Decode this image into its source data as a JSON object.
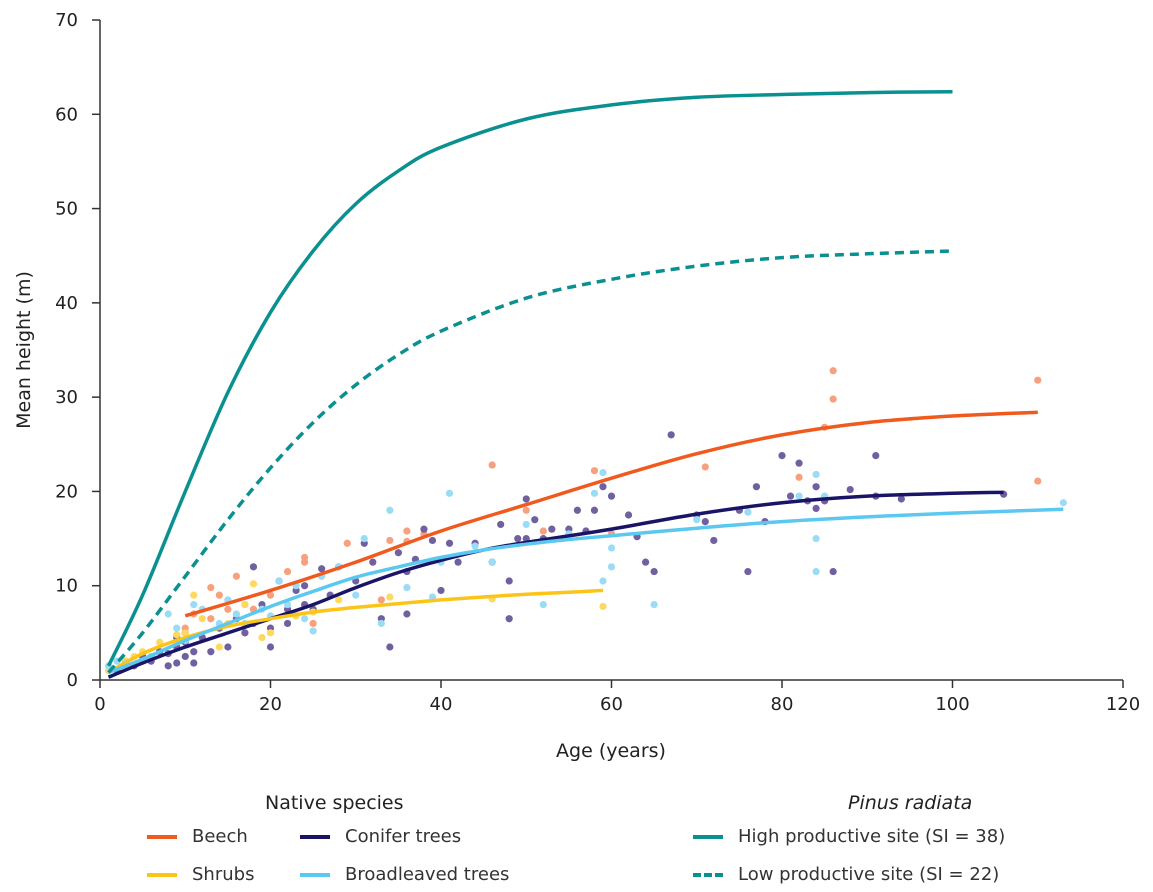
{
  "chart_data": {
    "type": "scatter",
    "xlabel": "Age (years)",
    "ylabel": "Mean height (m)",
    "xlim": [
      0,
      120
    ],
    "ylim": [
      0,
      70
    ],
    "xticks": [
      0,
      20,
      40,
      60,
      80,
      100,
      120
    ],
    "yticks": [
      0,
      10,
      20,
      30,
      40,
      50,
      60,
      70
    ],
    "grid": false,
    "legend_groups": [
      {
        "heading": "Native species",
        "italic": false,
        "items": [
          "Beech",
          "Conifer trees",
          "Shrubs",
          "Broadleaved trees"
        ]
      },
      {
        "heading": "Pinus radiata",
        "italic": true,
        "items": [
          "High productive site (SI = 38)",
          "Low productive site (SI = 22)"
        ]
      }
    ],
    "series": [
      {
        "name": "Beech",
        "color": "#f05a1e",
        "style": "solid",
        "x": [
          10,
          20,
          30,
          40,
          50,
          60,
          70,
          80,
          90,
          100,
          110
        ],
        "y": [
          6.8,
          9.5,
          12.5,
          15.8,
          18.6,
          21.4,
          24.0,
          26.0,
          27.3,
          28.0,
          28.4
        ]
      },
      {
        "name": "Conifer trees",
        "color": "#1a1466",
        "style": "solid",
        "x": [
          1,
          5,
          10,
          15,
          20,
          25,
          30,
          35,
          40,
          45,
          50,
          60,
          70,
          80,
          90,
          100,
          106
        ],
        "y": [
          0.3,
          1.8,
          3.5,
          5.0,
          6.5,
          8.0,
          9.8,
          11.4,
          12.7,
          13.8,
          14.6,
          16.0,
          17.6,
          18.8,
          19.5,
          19.8,
          19.9
        ]
      },
      {
        "name": "Shrubs",
        "color": "#fdc418",
        "style": "solid",
        "x": [
          1,
          5,
          10,
          15,
          20,
          25,
          30,
          35,
          40,
          45,
          50,
          55,
          59
        ],
        "y": [
          0.8,
          2.8,
          4.5,
          5.7,
          6.5,
          7.2,
          7.7,
          8.1,
          8.5,
          8.8,
          9.1,
          9.3,
          9.5
        ]
      },
      {
        "name": "Broadleaved trees",
        "color": "#5bc8f0",
        "style": "solid",
        "x": [
          1,
          5,
          10,
          15,
          20,
          25,
          30,
          35,
          40,
          45,
          50,
          55,
          60,
          70,
          80,
          90,
          100,
          113
        ],
        "y": [
          0.8,
          2.2,
          4.2,
          6.0,
          7.8,
          9.4,
          10.9,
          12.0,
          13.0,
          13.8,
          14.4,
          14.9,
          15.3,
          16.1,
          16.8,
          17.3,
          17.7,
          18.1
        ]
      },
      {
        "name": "High productive site (SI = 38)",
        "color": "#0a9090",
        "style": "solid",
        "x": [
          1,
          5,
          10,
          15,
          20,
          25,
          30,
          35,
          40,
          50,
          60,
          70,
          80,
          90,
          100
        ],
        "y": [
          1.5,
          9.0,
          20.0,
          30.5,
          39.0,
          45.5,
          50.5,
          54.0,
          56.5,
          59.5,
          61.0,
          61.8,
          62.1,
          62.3,
          62.4
        ]
      },
      {
        "name": "Low productive site (SI = 22)",
        "color": "#0a9090",
        "style": "dashed",
        "x": [
          1,
          5,
          10,
          15,
          20,
          25,
          30,
          35,
          40,
          50,
          60,
          70,
          80,
          90,
          100
        ],
        "y": [
          0.8,
          5.0,
          11.0,
          17.0,
          22.5,
          27.3,
          31.3,
          34.5,
          37.0,
          40.5,
          42.5,
          43.9,
          44.8,
          45.2,
          45.5
        ]
      }
    ],
    "points": [
      {
        "name": "Beech",
        "color": "#f7a07e",
        "x": [
          10,
          11,
          13,
          13,
          14,
          15,
          16,
          17,
          18,
          20,
          22,
          24,
          24,
          25,
          29,
          33,
          34,
          36,
          36,
          38,
          46,
          50,
          52,
          58,
          60,
          71,
          82,
          85,
          86,
          86,
          110,
          110
        ],
        "y": [
          5.5,
          7.0,
          6.5,
          9.8,
          9.0,
          7.5,
          11.0,
          8.0,
          7.5,
          9.0,
          11.5,
          13.0,
          12.5,
          6.0,
          14.5,
          8.5,
          14.8,
          15.8,
          14.7,
          15.5,
          22.8,
          18.0,
          15.8,
          22.2,
          15.5,
          22.6,
          21.5,
          26.8,
          32.8,
          29.8,
          31.8,
          21.1
        ]
      },
      {
        "name": "Conifer trees",
        "color": "#7060a0",
        "x": [
          2,
          3,
          4,
          5,
          6,
          7,
          8,
          8,
          9,
          9,
          9,
          10,
          10,
          10,
          11,
          11,
          12,
          13,
          14,
          15,
          16,
          17,
          18,
          18,
          19,
          20,
          20,
          21,
          22,
          22,
          23,
          24,
          24,
          25,
          26,
          27,
          28,
          30,
          31,
          32,
          33,
          34,
          35,
          36,
          36,
          37,
          38,
          39,
          40,
          41,
          42,
          44,
          46,
          47,
          48,
          48,
          49,
          50,
          50,
          51,
          52,
          53,
          55,
          56,
          57,
          58,
          59,
          60,
          62,
          63,
          64,
          65,
          67,
          70,
          71,
          72,
          75,
          76,
          77,
          78,
          80,
          81,
          82,
          83,
          84,
          84,
          85,
          86,
          88,
          91,
          91,
          94,
          106
        ],
        "y": [
          1.0,
          2.0,
          1.5,
          2.5,
          2.0,
          3.0,
          1.5,
          2.8,
          1.8,
          3.5,
          4.5,
          2.5,
          4.0,
          5.0,
          1.8,
          3.0,
          4.5,
          3.0,
          5.5,
          3.5,
          6.5,
          5.0,
          6.0,
          12.0,
          8.0,
          3.5,
          5.5,
          10.5,
          7.5,
          6.0,
          9.5,
          8.0,
          10.0,
          7.5,
          11.8,
          9.0,
          12.0,
          10.5,
          14.5,
          12.5,
          6.5,
          3.5,
          13.5,
          11.5,
          7.0,
          12.8,
          16.0,
          14.8,
          9.5,
          14.5,
          12.5,
          14.5,
          12.5,
          16.5,
          10.5,
          6.5,
          15.0,
          15.0,
          19.2,
          17.0,
          15.0,
          16.0,
          16.0,
          18.0,
          15.8,
          18.0,
          20.5,
          19.5,
          17.5,
          15.2,
          12.5,
          11.5,
          26.0,
          17.5,
          16.8,
          14.8,
          18.0,
          11.5,
          20.5,
          16.8,
          23.8,
          19.5,
          23.0,
          19.0,
          20.5,
          18.2,
          19.0,
          11.5,
          20.2,
          23.8,
          19.5,
          19.2,
          19.7
        ]
      },
      {
        "name": "Shrubs",
        "color": "#fdd960",
        "x": [
          1,
          3,
          4,
          5,
          7,
          9,
          10,
          11,
          12,
          14,
          15,
          16,
          17,
          18,
          19,
          20,
          23,
          25,
          28,
          34,
          46,
          59
        ],
        "y": [
          1.0,
          2.0,
          2.5,
          3.0,
          4.0,
          4.8,
          5.0,
          9.0,
          6.5,
          3.5,
          6.0,
          7.0,
          8.0,
          10.2,
          4.5,
          5.0,
          6.8,
          7.2,
          8.5,
          8.8,
          8.6,
          7.8
        ]
      },
      {
        "name": "Broadleaved trees",
        "color": "#9adcf5",
        "x": [
          1,
          2,
          3,
          5,
          6,
          8,
          9,
          10,
          11,
          12,
          14,
          15,
          16,
          17,
          19,
          20,
          21,
          22,
          23,
          24,
          25,
          26,
          28,
          30,
          31,
          33,
          34,
          36,
          39,
          40,
          41,
          44,
          46,
          50,
          52,
          55,
          58,
          59,
          59,
          60,
          60,
          65,
          70,
          76,
          82,
          84,
          84,
          84,
          85,
          113
        ],
        "y": [
          1.5,
          2.0,
          1.8,
          2.0,
          2.5,
          7.0,
          5.5,
          4.2,
          8.0,
          7.5,
          6.0,
          8.5,
          7.0,
          6.0,
          7.5,
          6.8,
          10.5,
          8.0,
          10.0,
          6.5,
          5.2,
          11.0,
          12.0,
          9.0,
          15.0,
          6.0,
          18.0,
          9.8,
          8.8,
          12.5,
          19.8,
          14.2,
          12.5,
          16.5,
          8.0,
          15.5,
          19.8,
          22.0,
          10.5,
          14.0,
          12.0,
          8.0,
          17.0,
          17.8,
          19.5,
          15.0,
          11.5,
          21.8,
          19.5,
          18.8
        ]
      }
    ]
  }
}
